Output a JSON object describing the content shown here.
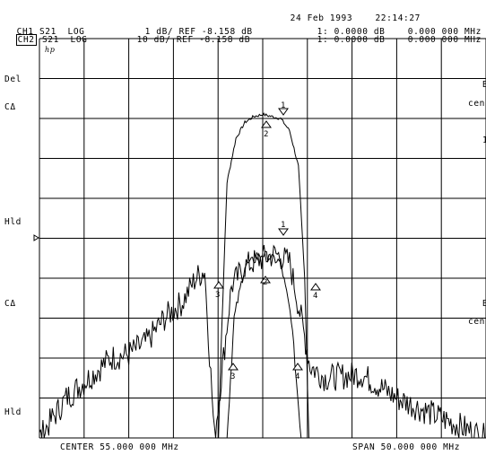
{
  "header": {
    "date": "24 Feb 1993",
    "time": "22:14:27",
    "ch1": {
      "label": "CH1",
      "param": "S21",
      "format": "LOG",
      "scale": "1 dB/",
      "ref": "REF -8.158 dB",
      "marker": "1: 0.0000 dB",
      "freq": "0.000 000 MHz"
    },
    "ch2": {
      "label": "CH2",
      "param": "S21",
      "format": "LOG",
      "scale": "10 dB/",
      "ref": "REF -8.158 dB",
      "marker": "1: 0.0000 dB",
      "freq": "0.000 000 MHz"
    }
  },
  "left_annotations": {
    "logo": "hp",
    "del": "Del",
    "ca_top": "CΔ",
    "hld_top": "Hld",
    "ca_bottom": "CΔ",
    "hld_bottom": "Hld"
  },
  "right_annotations": {
    "r1": "B",
    "r2": "cen",
    "r3": "1",
    "r4": "B",
    "r5": "cen"
  },
  "footer": {
    "center": "CENTER 55.000 000 MHz",
    "span": "SPAN 50.000 000 MHz"
  },
  "markers": {
    "ch1": [
      "1",
      "2"
    ],
    "ch2": [
      "1",
      "2",
      "3",
      "4"
    ],
    "ch2_bottom": [
      "3",
      "4"
    ]
  },
  "chart_data": {
    "type": "line",
    "x_unit": "MHz",
    "x_range": [
      30,
      80
    ],
    "series": [
      {
        "channel": "CH1",
        "scale_db_per_div": 1,
        "points": [
          [
            49.8,
            -10
          ],
          [
            50.3,
            -6
          ],
          [
            51.0,
            -1.6
          ],
          [
            52.0,
            -0.5
          ],
          [
            53.0,
            -0.1
          ],
          [
            54.0,
            0.05
          ],
          [
            55.0,
            0.1
          ],
          [
            56.0,
            0.05
          ],
          [
            57.0,
            0
          ],
          [
            58.0,
            -0.3
          ],
          [
            59.0,
            -1.2
          ],
          [
            59.7,
            -4
          ],
          [
            60.4,
            -10
          ]
        ]
      },
      {
        "channel": "CH2",
        "scale_db_per_div": 10,
        "points": [
          [
            30,
            -50
          ],
          [
            33,
            -40
          ],
          [
            36,
            -34
          ],
          [
            38,
            -30
          ],
          [
            40,
            -29
          ],
          [
            42,
            -26
          ],
          [
            44,
            -20
          ],
          [
            46,
            -16
          ],
          [
            47.5,
            -10
          ],
          [
            48.5,
            -8
          ],
          [
            49.6,
            -50
          ],
          [
            51.5,
            -12
          ],
          [
            53,
            -7
          ],
          [
            55,
            -5
          ],
          [
            56.5,
            -4
          ],
          [
            58,
            -6
          ],
          [
            59.3,
            -20
          ],
          [
            60.3,
            -32
          ],
          [
            62,
            -35
          ],
          [
            66,
            -34
          ],
          [
            70,
            -40
          ],
          [
            74,
            -44
          ],
          [
            78,
            -48
          ],
          [
            80,
            -50
          ]
        ]
      },
      {
        "channel": "CH2",
        "scale_db_per_div": 10,
        "points": [
          [
            50.3,
            -90
          ],
          [
            51.0,
            -50
          ],
          [
            51.8,
            -20
          ],
          [
            53,
            -7
          ],
          [
            55,
            -4
          ],
          [
            57,
            -6
          ],
          [
            58.2,
            -20
          ],
          [
            59.3,
            -50
          ],
          [
            60.0,
            -90
          ]
        ]
      }
    ]
  }
}
